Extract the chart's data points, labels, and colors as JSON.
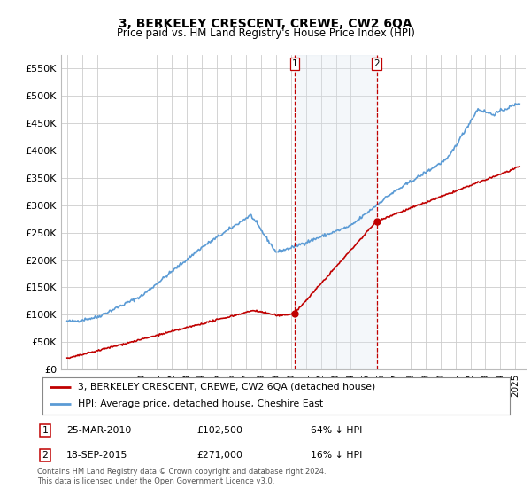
{
  "title": "3, BERKELEY CRESCENT, CREWE, CW2 6QA",
  "subtitle": "Price paid vs. HM Land Registry's House Price Index (HPI)",
  "background_color": "#ffffff",
  "plot_bg_color": "#ffffff",
  "grid_color": "#cccccc",
  "hpi_line_color": "#5b9bd5",
  "sale_line_color": "#c00000",
  "ylim": [
    0,
    575000
  ],
  "yticks": [
    0,
    50000,
    100000,
    150000,
    200000,
    250000,
    300000,
    350000,
    400000,
    450000,
    500000,
    550000
  ],
  "ytick_labels": [
    "£0",
    "£50K",
    "£100K",
    "£150K",
    "£200K",
    "£250K",
    "£300K",
    "£350K",
    "£400K",
    "£450K",
    "£500K",
    "£550K"
  ],
  "sale1_year": 2010.23,
  "sale1_price": 102500,
  "sale1_label": "1",
  "sale2_year": 2015.72,
  "sale2_price": 271000,
  "sale2_label": "2",
  "shade_color": "#dce6f1",
  "sale_marker_color": "#c00000",
  "legend_entries": [
    "3, BERKELEY CRESCENT, CREWE, CW2 6QA (detached house)",
    "HPI: Average price, detached house, Cheshire East"
  ],
  "table_rows": [
    [
      "1",
      "25-MAR-2010",
      "£102,500",
      "64% ↓ HPI"
    ],
    [
      "2",
      "18-SEP-2015",
      "£271,000",
      "16% ↓ HPI"
    ]
  ],
  "footnote": "Contains HM Land Registry data © Crown copyright and database right 2024.\nThis data is licensed under the Open Government Licence v3.0.",
  "hpi_shade_alpha": 0.3,
  "title_fontsize": 10,
  "subtitle_fontsize": 8.5,
  "tick_fontsize": 7.5,
  "ytick_fontsize": 8
}
